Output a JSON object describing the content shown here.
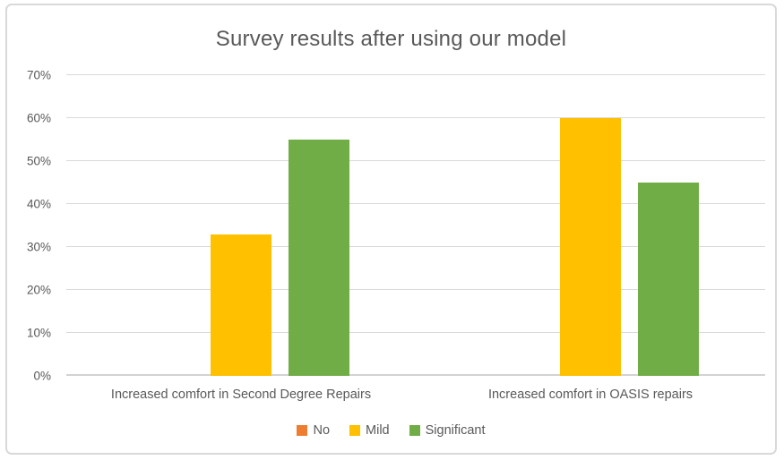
{
  "frame": {
    "background": "#ffffff",
    "border_color": "#D9D9D9",
    "gridline_color": "#D9D9D9",
    "axis_line_color": "#D2D2D2",
    "text_color": "#595959"
  },
  "chart_data": {
    "type": "bar",
    "title": "Survey results after using our model",
    "categories": [
      "Increased comfort in Second Degree Repairs",
      "Increased comfort in OASIS repairs"
    ],
    "series": [
      {
        "name": "No",
        "color": "#ED7D31",
        "values": [
          0,
          0
        ]
      },
      {
        "name": "Mild",
        "color": "#FFC000",
        "values": [
          33,
          60
        ]
      },
      {
        "name": "Significant",
        "color": "#70AD47",
        "values": [
          55,
          45
        ]
      }
    ],
    "ylim": [
      0,
      70
    ],
    "yticks": [
      "0%",
      "10%",
      "20%",
      "30%",
      "40%",
      "50%",
      "60%",
      "70%"
    ],
    "grid": true,
    "legend_position": "bottom"
  }
}
